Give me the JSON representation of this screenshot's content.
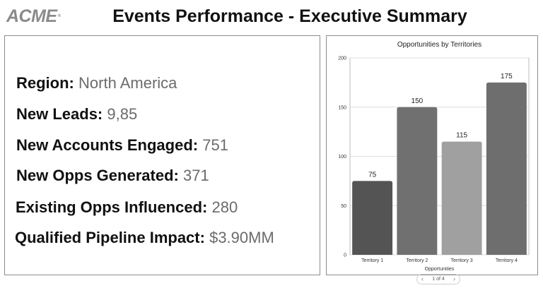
{
  "header": {
    "logo": "ACME",
    "logo_mark": "®",
    "title": "Events Performance - Executive Summary"
  },
  "kpis": [
    {
      "label": "Region:",
      "value": "North America"
    },
    {
      "label": "New Leads:",
      "value": "9,85"
    },
    {
      "label": "New Accounts Engaged:",
      "value": "751"
    },
    {
      "label": "New Opps Generated:",
      "value": "371"
    },
    {
      "label": "Existing Opps Influenced:",
      "value": "280"
    },
    {
      "label": "Qualified Pipeline Impact:",
      "value": "$3.90MM"
    }
  ],
  "pager": {
    "text": "1 of 4",
    "prev_icon": "chevron-left-icon",
    "next_icon": "chevron-right-icon"
  },
  "colors": {
    "bar_colors": [
      "#545454",
      "#707070",
      "#a0a0a0",
      "#6e6e6e"
    ]
  },
  "chart_data": {
    "type": "bar",
    "title": "Opportunities by Territories",
    "categories": [
      "Territory 1",
      "Territory 2",
      "Territory 3",
      "Territory 4"
    ],
    "values": [
      75,
      150,
      115,
      175
    ],
    "xlabel": "Opportunities",
    "ylabel": "",
    "ylim": [
      0,
      200
    ],
    "yticks": [
      0,
      50,
      100,
      150,
      200
    ],
    "grid": true,
    "data_labels": true
  }
}
